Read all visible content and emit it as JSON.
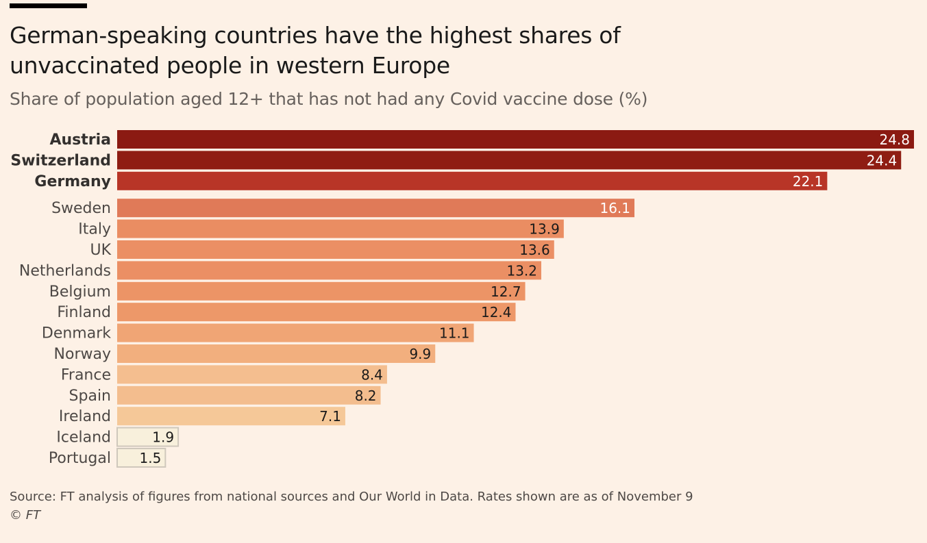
{
  "title": "German-speaking countries have the highest shares of unvaccinated people in western Europe",
  "subtitle": "Share of population aged 12+ that has not had any Covid vaccine dose (%)",
  "source": "Source: FT analysis of figures from national sources and Our World in Data. Rates shown are as of November 9",
  "copyright": "© FT",
  "chart_data": {
    "type": "bar",
    "orientation": "horizontal",
    "title": "German-speaking countries have the highest shares of unvaccinated people in western Europe",
    "subtitle": "Share of population aged 12+ that has not had any Covid vaccine dose (%)",
    "xlim": [
      0,
      24.8
    ],
    "grid": false,
    "categories": [
      "Austria",
      "Switzerland",
      "Germany",
      "Sweden",
      "Italy",
      "UK",
      "Netherlands",
      "Belgium",
      "Finland",
      "Denmark",
      "Norway",
      "France",
      "Spain",
      "Ireland",
      "Iceland",
      "Portugal"
    ],
    "values": [
      24.8,
      24.4,
      22.1,
      16.1,
      13.9,
      13.6,
      13.2,
      12.7,
      12.4,
      11.1,
      9.9,
      8.4,
      8.2,
      7.1,
      1.9,
      1.5
    ],
    "labels": [
      "24.8",
      "24.4",
      "22.1",
      "16.1",
      "13.9",
      "13.6",
      "13.2",
      "12.7",
      "12.4",
      "11.1",
      "9.9",
      "8.4",
      "8.2",
      "7.1",
      "1.9",
      "1.5"
    ],
    "highlighted": [
      "Austria",
      "Switzerland",
      "Germany"
    ],
    "colors": [
      "#8b1a12",
      "#8f1d13",
      "#b83527",
      "#e07a58",
      "#ea8d62",
      "#eb8f64",
      "#eb8f64",
      "#ec9466",
      "#ed9869",
      "#f0a575",
      "#f2af7e",
      "#f4be8f",
      "#f3bd8e",
      "#f5c898",
      "#f8f0dc",
      "#f8f0dc"
    ]
  }
}
